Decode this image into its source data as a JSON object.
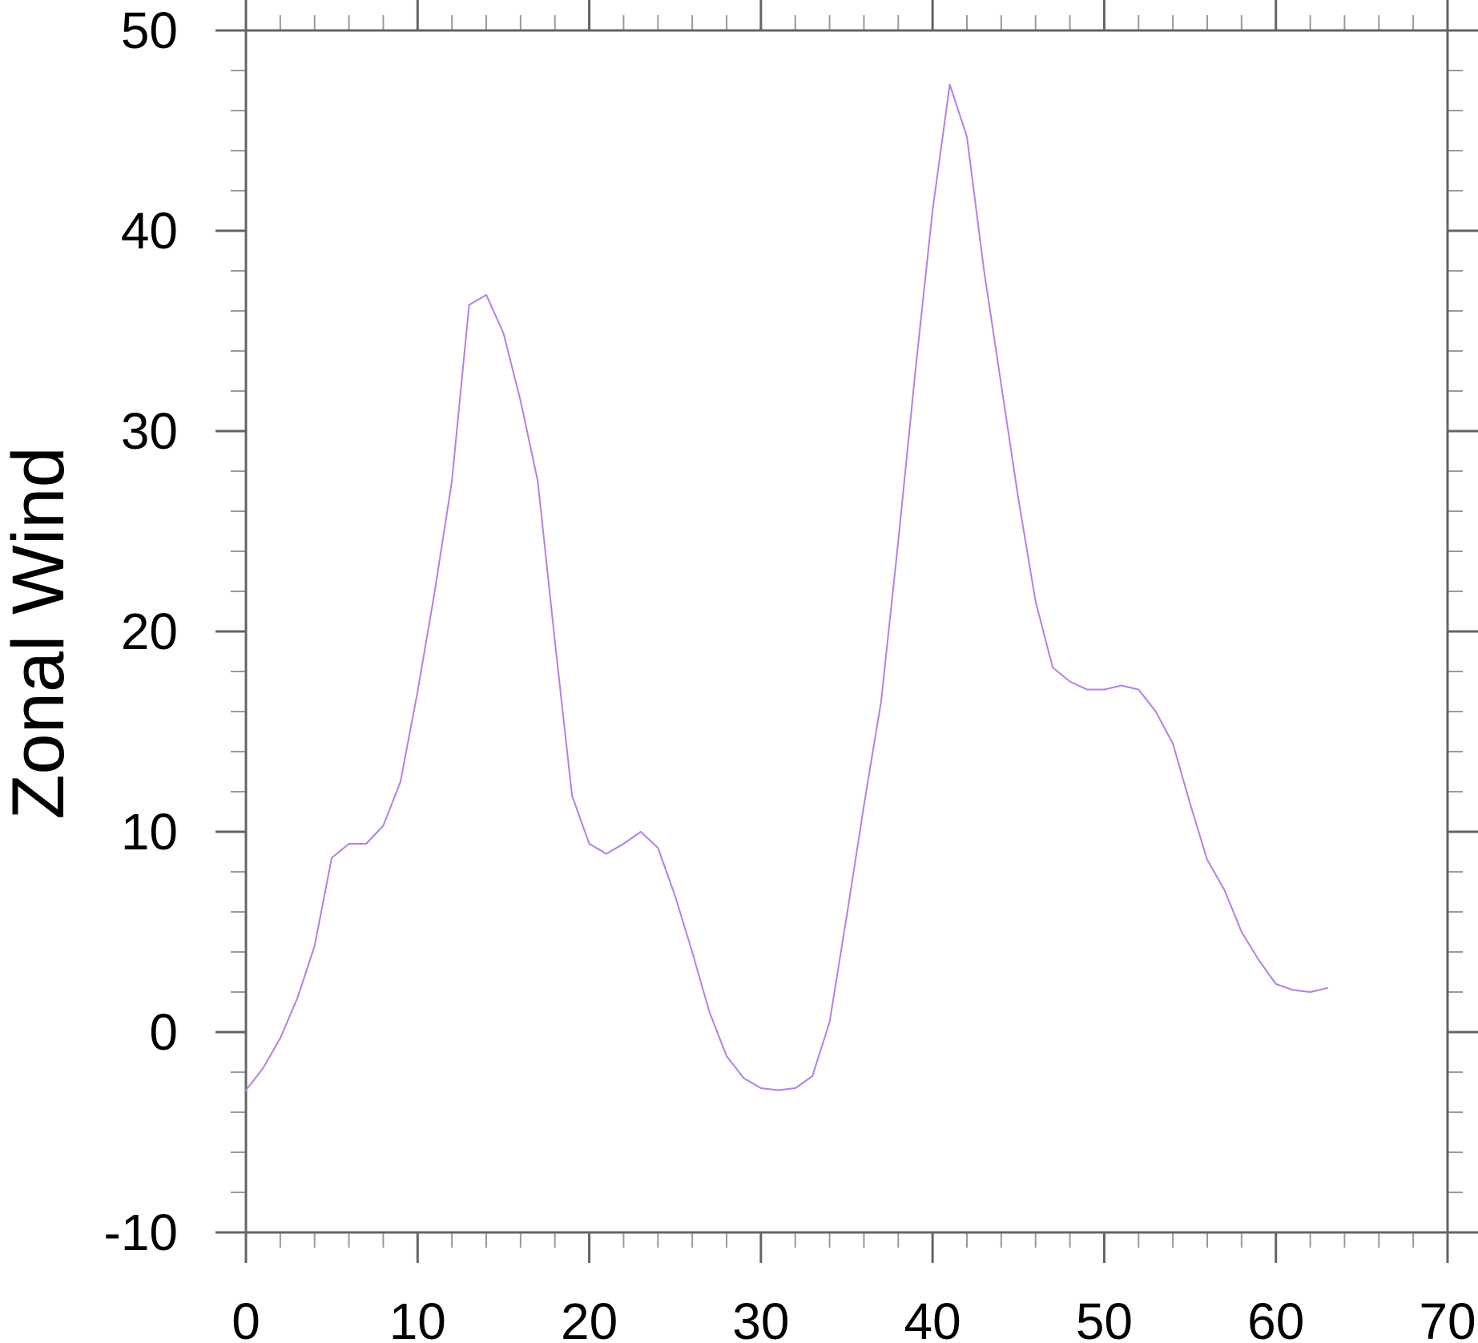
{
  "page": {
    "background_color": "#ffffff"
  },
  "chart_data": {
    "type": "line",
    "title": "",
    "xlabel": "",
    "ylabel": "Zonal Wind",
    "xlim": [
      0,
      70
    ],
    "ylim": [
      -10,
      50
    ],
    "x_major_ticks": [
      0,
      10,
      20,
      30,
      40,
      50,
      60,
      70
    ],
    "x_major_tick_labels": [
      "0",
      "10",
      "20",
      "30",
      "40",
      "50",
      "60",
      "70"
    ],
    "y_major_ticks": [
      -10,
      0,
      10,
      20,
      30,
      40,
      50
    ],
    "y_major_tick_labels": [
      "-10",
      "0",
      "10",
      "20",
      "30",
      "40",
      "50"
    ],
    "minor_tick_step": 2,
    "grid": false,
    "boxed_frame": true,
    "ticks_outward_all_sides": true,
    "legend": "none",
    "axis_color": "#646464",
    "minor_tick_color": "#9a9a9a",
    "tick_label_color": "#000000",
    "line_color": "#b57fe5",
    "x_start": 0,
    "x_step": 1,
    "series": [
      {
        "name": "zonal-wind",
        "color": "#b57fe5",
        "values": [
          -2.9,
          -1.8,
          -0.3,
          1.7,
          4.3,
          8.7,
          9.4,
          9.4,
          10.3,
          12.5,
          17.0,
          22.0,
          27.5,
          36.3,
          36.8,
          34.9,
          31.5,
          27.5,
          19.5,
          11.8,
          9.4,
          8.9,
          9.4,
          10.0,
          9.2,
          6.8,
          4.0,
          1.0,
          -1.2,
          -2.3,
          -2.8,
          -2.9,
          -2.8,
          -2.2,
          0.5,
          5.8,
          11.3,
          16.5,
          24.5,
          33.0,
          41.0,
          47.3,
          44.7,
          38.0,
          32.3,
          26.6,
          21.5,
          18.2,
          17.5,
          17.1,
          17.1,
          17.3,
          17.1,
          16.0,
          14.4,
          11.4,
          8.6,
          7.1,
          5.0,
          3.6,
          2.4,
          2.1,
          2.0,
          2.2
        ]
      }
    ]
  }
}
